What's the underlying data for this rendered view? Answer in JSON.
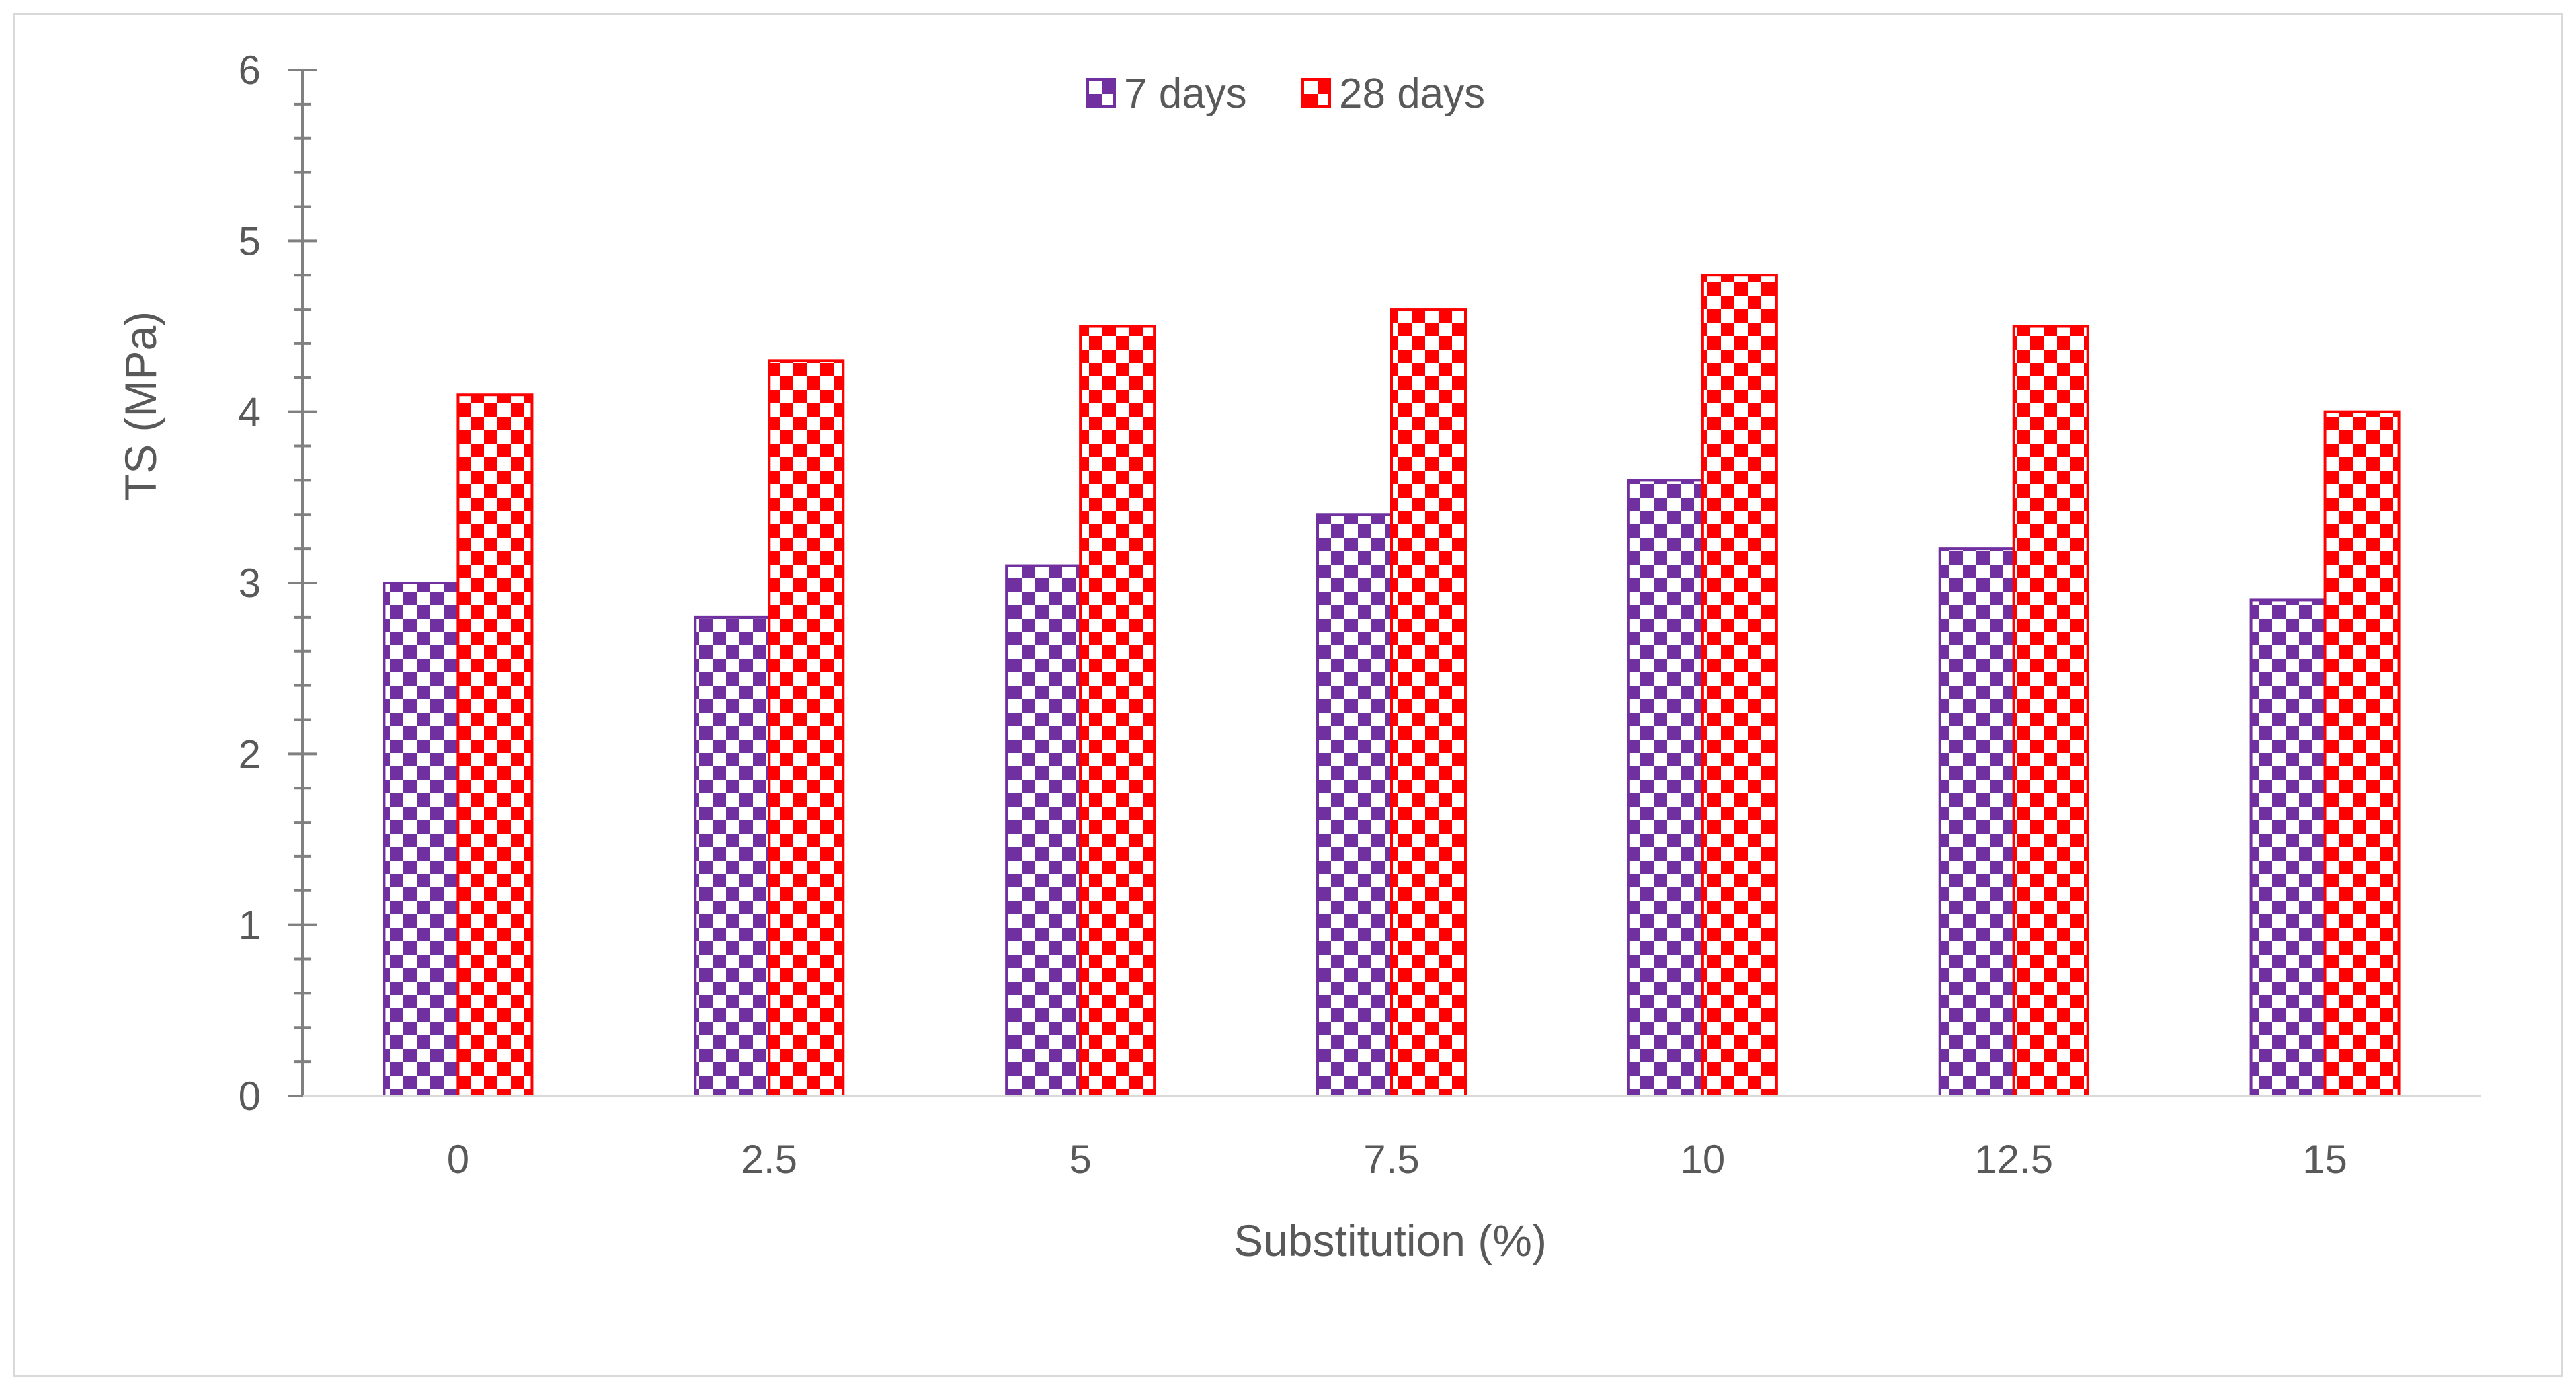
{
  "chart_data": {
    "type": "bar",
    "title": "",
    "xlabel": "Substitution (%)",
    "ylabel": "TS (MPa)",
    "ylim": [
      0,
      6
    ],
    "yticks": [
      "0",
      "1",
      "2",
      "3",
      "4",
      "5",
      "6"
    ],
    "categories": [
      "0",
      "2.5",
      "5",
      "7.5",
      "10",
      "12.5",
      "15"
    ],
    "legend_position": "top-center",
    "grid": false,
    "series": [
      {
        "name": "7 days",
        "color": "#7030a0",
        "values": [
          3.0,
          2.8,
          3.1,
          3.4,
          3.6,
          3.2,
          2.9
        ]
      },
      {
        "name": "28 days",
        "color": "#ff0000",
        "values": [
          4.1,
          4.3,
          4.5,
          4.6,
          4.8,
          4.5,
          4.0
        ]
      }
    ]
  }
}
